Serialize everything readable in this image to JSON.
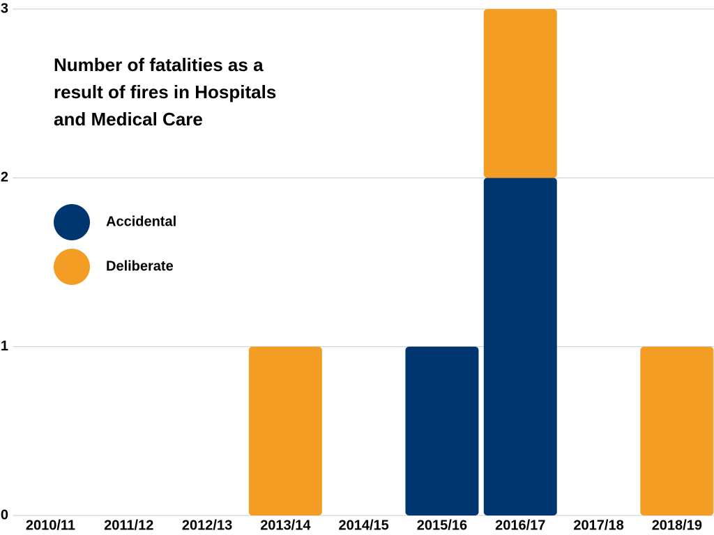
{
  "chart_data": {
    "type": "stacked_bar",
    "title": "Number of fatalities as a result of fires in Hospitals and Medical Care",
    "categories": [
      "2010/11",
      "2011/12",
      "2012/13",
      "2013/14",
      "2014/15",
      "2015/16",
      "2016/17",
      "2017/18",
      "2018/19"
    ],
    "series": [
      {
        "name": "Accidental",
        "color": "#003670",
        "values": [
          0,
          0,
          0,
          0,
          0,
          1,
          2,
          0,
          0
        ]
      },
      {
        "name": "Deliberate",
        "color": "#f49d24",
        "values": [
          0,
          0,
          0,
          1,
          0,
          0,
          1,
          0,
          1
        ]
      }
    ],
    "ylim": [
      0,
      3
    ],
    "yticks": [
      0,
      1,
      2,
      3
    ],
    "grid": true
  }
}
